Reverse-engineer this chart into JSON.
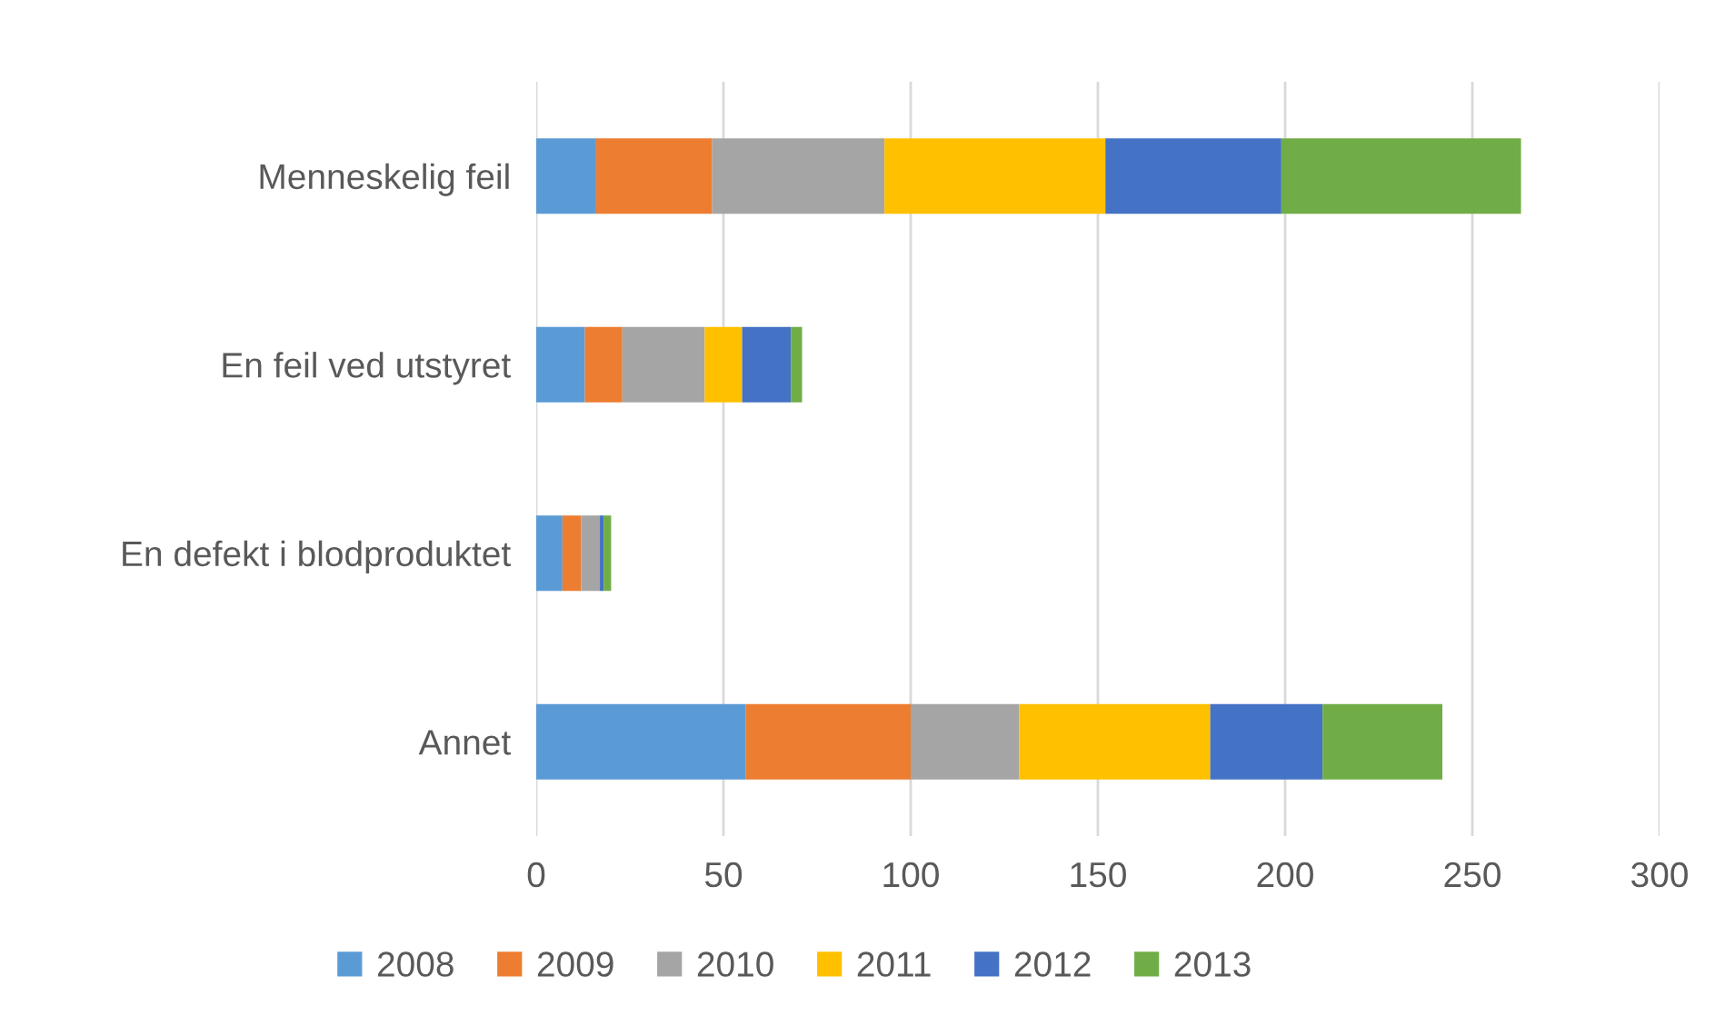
{
  "chart_data": {
    "type": "bar",
    "orientation": "horizontal",
    "stacked": true,
    "categories": [
      "Menneskelig feil",
      "En feil ved utstyret",
      "En defekt i blodproduktet",
      "Annet"
    ],
    "series": [
      {
        "name": "2008",
        "color": "#5b9bd5",
        "values": [
          16,
          13,
          7,
          56
        ]
      },
      {
        "name": "2009",
        "color": "#ed7d31",
        "values": [
          31,
          10,
          5,
          44
        ]
      },
      {
        "name": "2010",
        "color": "#a5a5a5",
        "values": [
          46,
          22,
          5,
          29
        ]
      },
      {
        "name": "2011",
        "color": "#ffc000",
        "values": [
          59,
          10,
          0,
          51
        ]
      },
      {
        "name": "2012",
        "color": "#4472c4",
        "values": [
          47,
          13,
          1,
          30
        ]
      },
      {
        "name": "2013",
        "color": "#70ad47",
        "values": [
          64,
          3,
          2,
          32
        ]
      }
    ],
    "xlim": [
      0,
      300
    ],
    "xticks": [
      0,
      50,
      100,
      150,
      200,
      250,
      300
    ],
    "grid": "x",
    "legend": "bottom"
  }
}
